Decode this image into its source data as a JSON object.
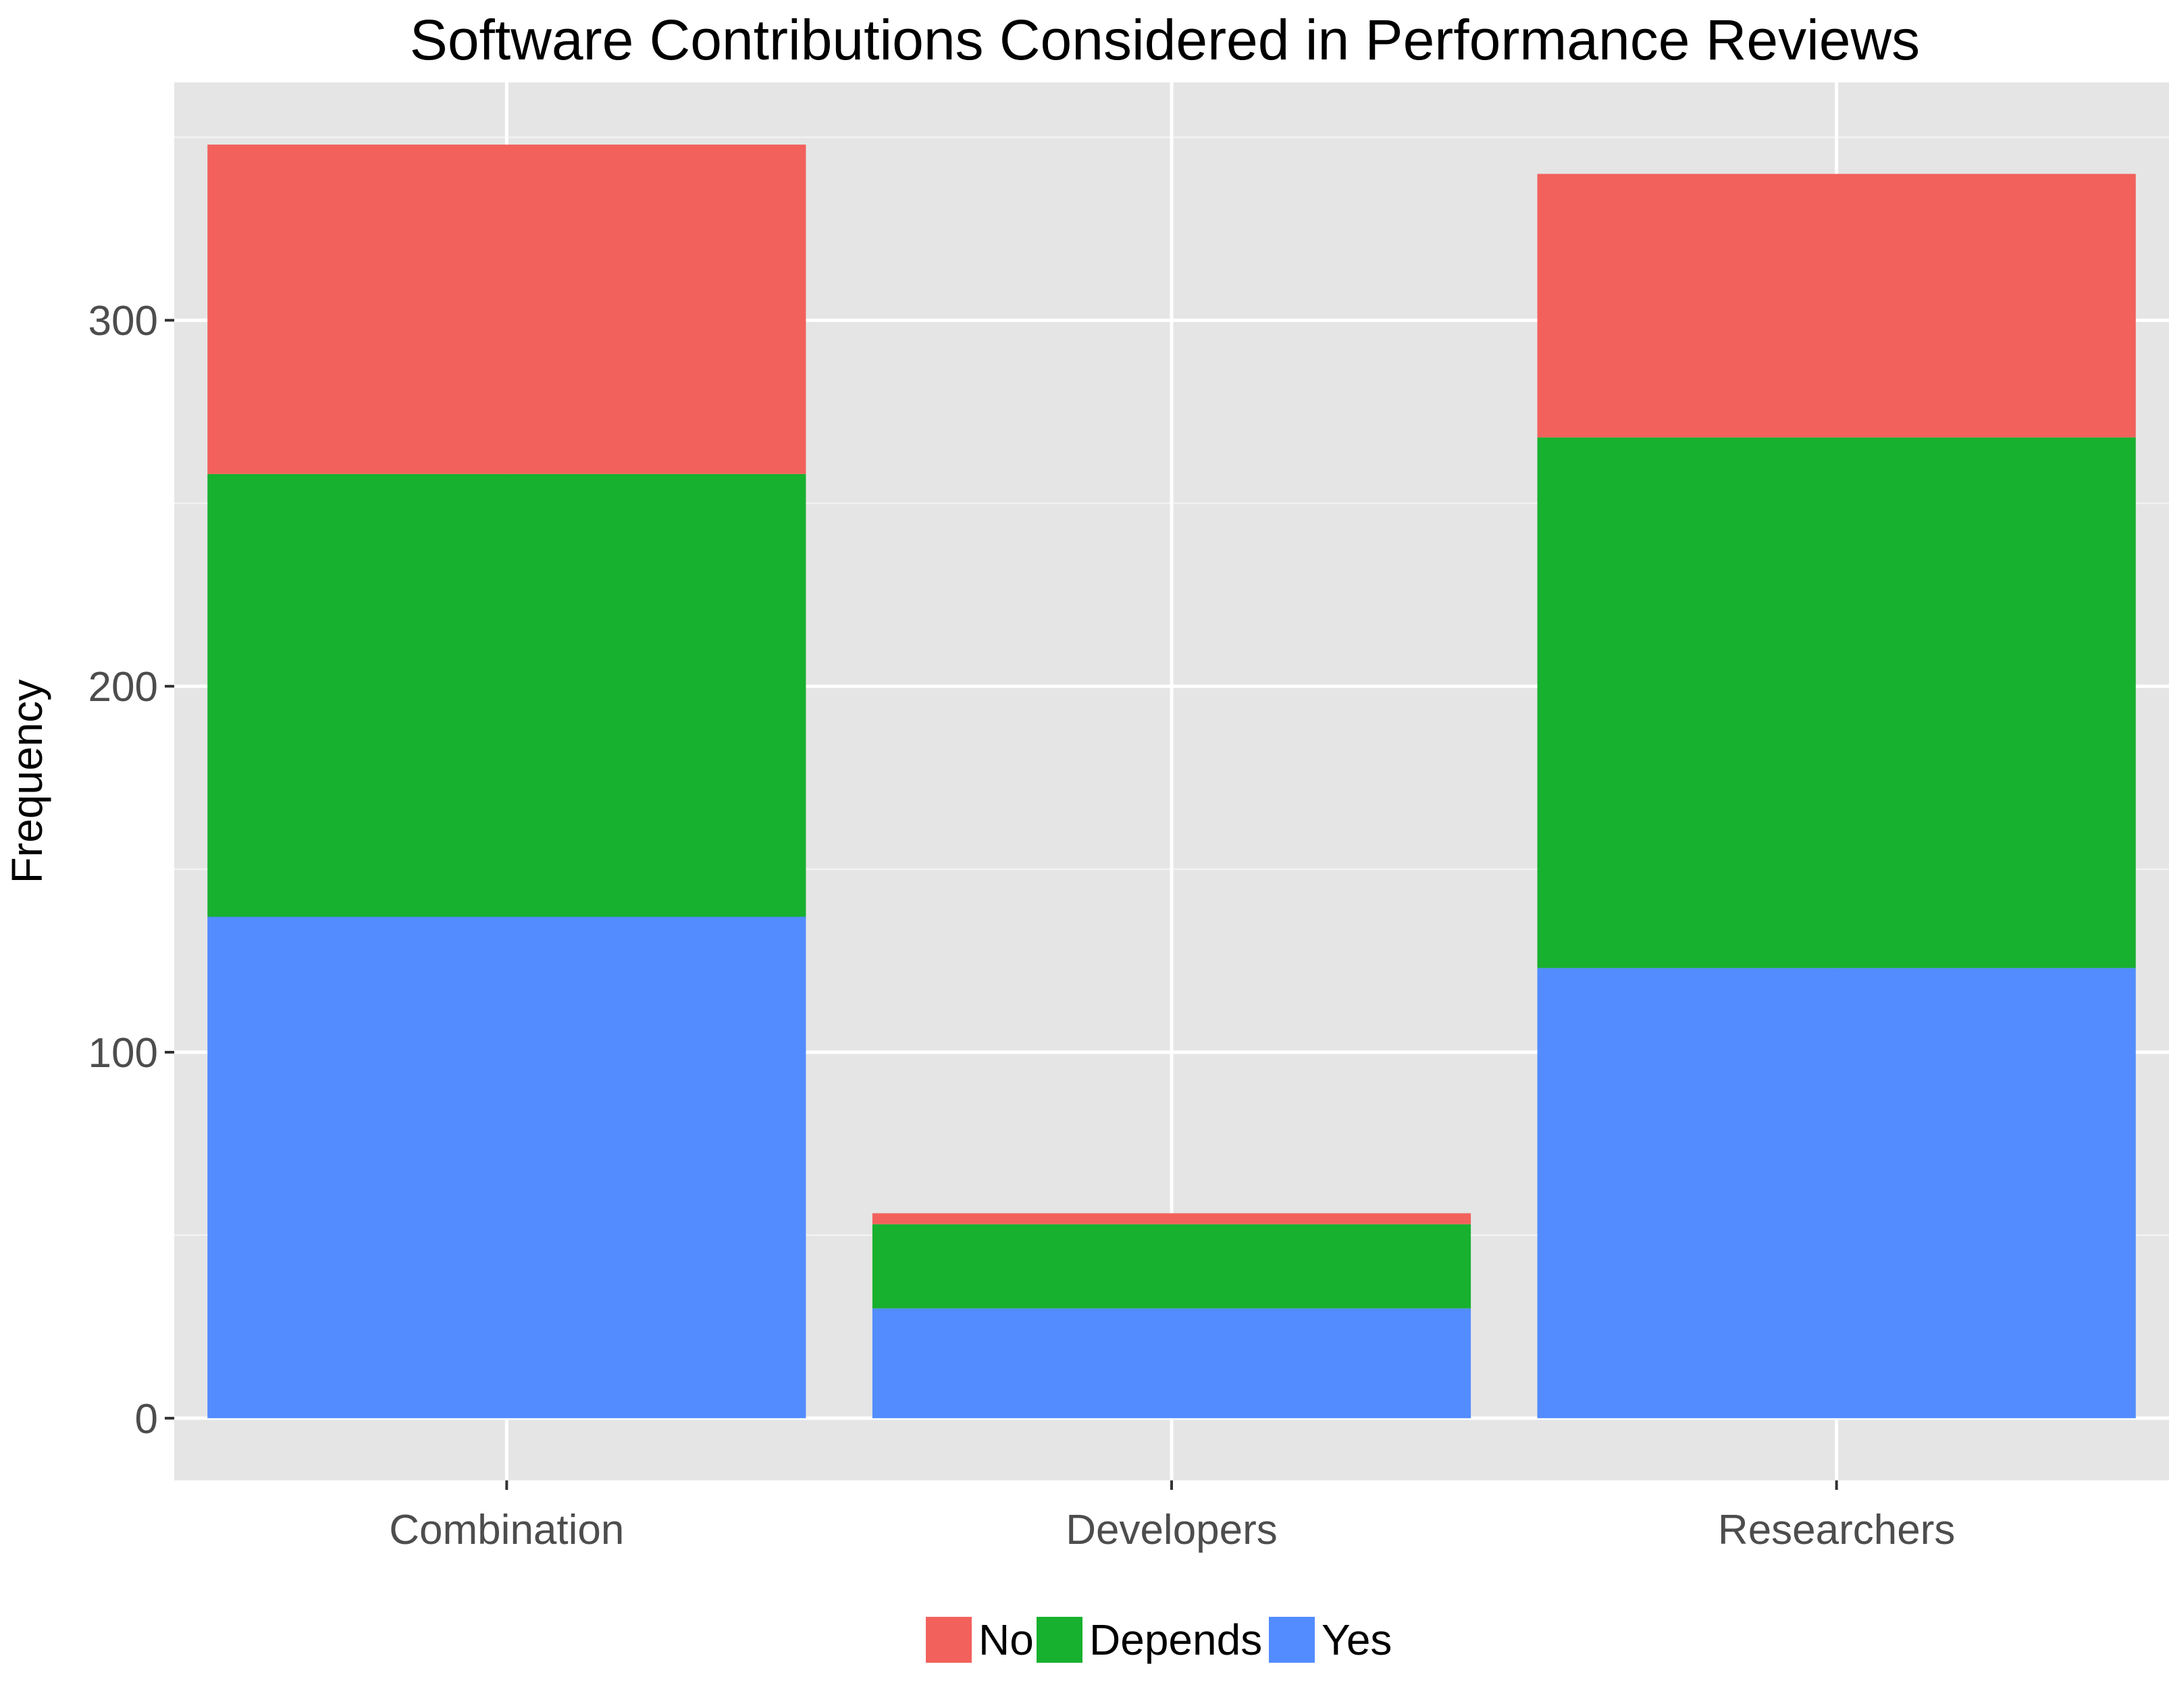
{
  "chart_data": {
    "type": "bar",
    "stacked": true,
    "title": "Software Contributions Considered in Performance Reviews",
    "xlabel": "",
    "ylabel": "Frequency",
    "categories": [
      "Combination",
      "Developers",
      "Researchers"
    ],
    "series": [
      {
        "name": "Yes",
        "color": "#528cff",
        "values": [
          137,
          30,
          123
        ]
      },
      {
        "name": "Depends",
        "color": "#18b02f",
        "values": [
          121,
          23,
          145
        ]
      },
      {
        "name": "No",
        "color": "#f2615c",
        "values": [
          90,
          3,
          72
        ]
      }
    ],
    "legend_order": [
      "No",
      "Depends",
      "Yes"
    ],
    "yticks": [
      0,
      100,
      200,
      300
    ],
    "ylim": [
      -17,
      365
    ],
    "grid": true,
    "legend_position": "bottom"
  }
}
